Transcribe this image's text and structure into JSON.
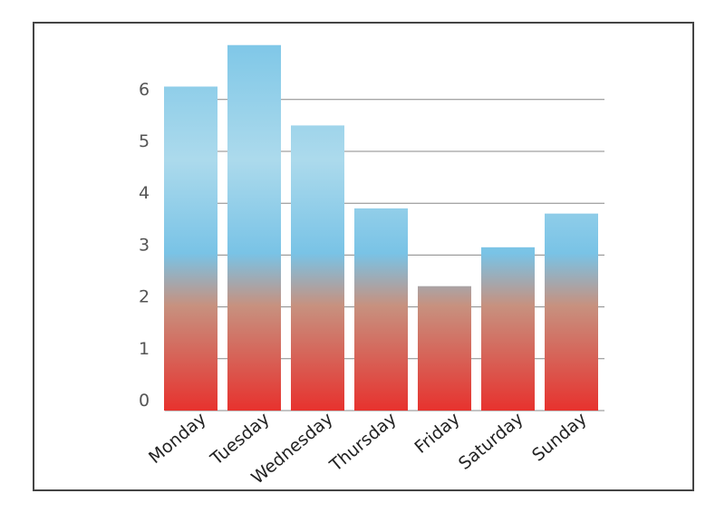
{
  "chart_data": {
    "type": "bar",
    "categories": [
      "Monday",
      "Tuesday",
      "Wednesday",
      "Thursday",
      "Friday",
      "Saturday",
      "Sunday"
    ],
    "values": [
      6.25,
      7.05,
      5.5,
      3.9,
      2.4,
      3.15,
      3.8
    ],
    "ylim": [
      0,
      7.2
    ],
    "yticks": [
      0,
      1,
      2,
      3,
      4,
      5,
      6
    ],
    "grid": true,
    "colors": {
      "bar_top": "#7cc6e7",
      "bar_mid_light": "#acdaec",
      "bar_mid_blue": "#79c3e6",
      "bar_low_muted": "#c7917f",
      "bar_bottom": "#e7322e",
      "grid": "#888888",
      "frame": "#444444"
    }
  }
}
